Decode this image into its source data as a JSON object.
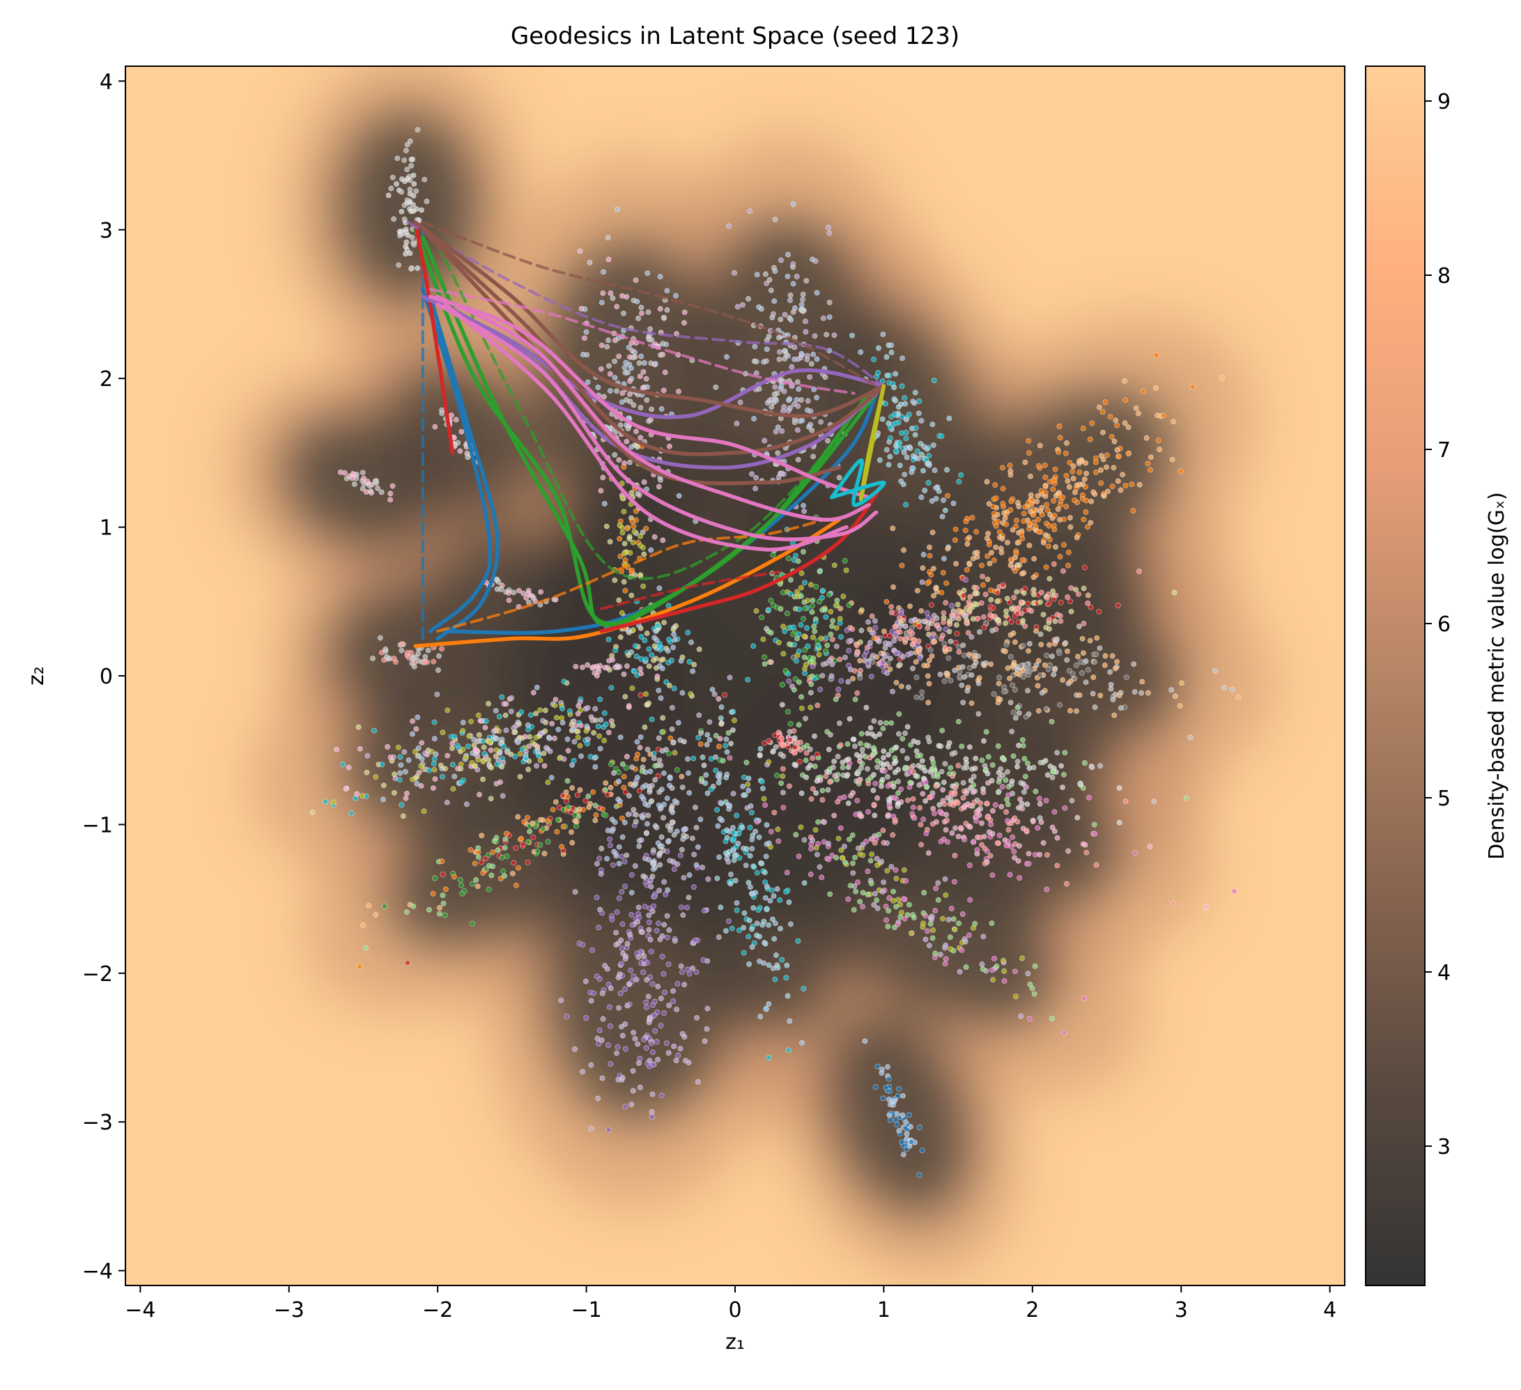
{
  "chart_data": {
    "type": "scatter",
    "title": "Geodesics in Latent Space (seed 123)",
    "xlabel": "z₁",
    "ylabel": "z₂",
    "xlim": [
      -4.1,
      4.1
    ],
    "ylim": [
      -4.1,
      4.1
    ],
    "x_ticks": [
      -4,
      -3,
      -2,
      -1,
      0,
      1,
      2,
      3,
      4
    ],
    "y_ticks": [
      -4,
      -3,
      -2,
      -1,
      0,
      1,
      2,
      3,
      4
    ],
    "x_tick_labels": [
      "−4",
      "−3",
      "−2",
      "−1",
      "0",
      "1",
      "2",
      "3",
      "4"
    ],
    "y_tick_labels": [
      "−4",
      "−3",
      "−2",
      "−1",
      "0",
      "1",
      "2",
      "3",
      "4"
    ],
    "grid": false,
    "colorbar": {
      "label": "Density-based metric value log(Gₓ)",
      "range": [
        2.2,
        9.2
      ],
      "ticks": [
        3,
        4,
        5,
        6,
        7,
        8,
        9
      ],
      "tick_labels": [
        "3",
        "4",
        "5",
        "6",
        "7",
        "8",
        "9"
      ],
      "colors": [
        "#333333",
        "#5a4a40",
        "#8a6650",
        "#b58565",
        "#e69d78",
        "#ffb07e",
        "#fecf96"
      ]
    },
    "background_low_density_color": "#fecf96",
    "clusters": [
      {
        "center": [
          -2.2,
          3.15
        ],
        "spread": [
          0.06,
          0.18
        ],
        "angle": 0,
        "n": 70,
        "colors": [
          "#c7c7c7",
          "#dddddd"
        ]
      },
      {
        "center": [
          -0.7,
          1.9
        ],
        "spread": [
          0.17,
          0.45
        ],
        "angle": 0,
        "n": 220,
        "colors": [
          "#aec7e8",
          "#c7c7c7",
          "#f7b6d2"
        ]
      },
      {
        "center": [
          0.35,
          2.05
        ],
        "spread": [
          0.17,
          0.45
        ],
        "angle": 0,
        "n": 220,
        "colors": [
          "#c5b0d5",
          "#aec7e8",
          "#c7c7c7"
        ]
      },
      {
        "center": [
          1.15,
          1.65
        ],
        "spread": [
          0.09,
          0.35
        ],
        "angle": 20,
        "n": 130,
        "colors": [
          "#17becf",
          "#9edae5",
          "#aec7e8"
        ]
      },
      {
        "center": [
          1.95,
          1.05
        ],
        "spread": [
          0.55,
          0.16
        ],
        "angle": 38,
        "n": 340,
        "colors": [
          "#ff7f0e",
          "#ffbb78"
        ]
      },
      {
        "center": [
          1.8,
          0.45
        ],
        "spread": [
          0.45,
          0.1
        ],
        "angle": 10,
        "n": 180,
        "colors": [
          "#d62728",
          "#ff9896",
          "#dbdb8d"
        ]
      },
      {
        "center": [
          1.85,
          0.05
        ],
        "spread": [
          0.55,
          0.14
        ],
        "angle": -5,
        "n": 260,
        "colors": [
          "#7f7f7f",
          "#c7c7c7",
          "#ffbb78"
        ]
      },
      {
        "center": [
          0.45,
          0.35
        ],
        "spread": [
          0.15,
          0.3
        ],
        "angle": 0,
        "n": 160,
        "colors": [
          "#2ca02c",
          "#bcbd22",
          "#17becf",
          "#98df8a"
        ]
      },
      {
        "center": [
          1.0,
          0.2
        ],
        "spread": [
          0.3,
          0.1
        ],
        "angle": 30,
        "n": 120,
        "colors": [
          "#9467bd",
          "#c5b0d5",
          "#ff9896"
        ]
      },
      {
        "center": [
          -0.55,
          0.2
        ],
        "spread": [
          0.15,
          0.12
        ],
        "angle": -30,
        "n": 90,
        "colors": [
          "#17becf",
          "#dbdb8d",
          "#aec7e8"
        ]
      },
      {
        "center": [
          -0.7,
          0.85
        ],
        "spread": [
          0.06,
          0.3
        ],
        "angle": 0,
        "n": 70,
        "colors": [
          "#ff7f0e",
          "#bcbd22",
          "#dbdb8d"
        ]
      },
      {
        "center": [
          -1.5,
          -0.45
        ],
        "spread": [
          0.55,
          0.14
        ],
        "angle": 12,
        "n": 380,
        "colors": [
          "#dbdb8d",
          "#17becf",
          "#aec7e8",
          "#f7b6d2",
          "#c5b0d5",
          "#bcbd22"
        ]
      },
      {
        "center": [
          -1.3,
          -1.05
        ],
        "spread": [
          0.55,
          0.1
        ],
        "angle": 32,
        "n": 200,
        "colors": [
          "#ff7f0e",
          "#2ca02c",
          "#d62728",
          "#98df8a",
          "#ffbb78"
        ]
      },
      {
        "center": [
          -0.6,
          -1.9
        ],
        "spread": [
          0.2,
          0.5
        ],
        "angle": -5,
        "n": 280,
        "colors": [
          "#9467bd",
          "#c5b0d5"
        ]
      },
      {
        "center": [
          -0.55,
          -0.95
        ],
        "spread": [
          0.15,
          0.25
        ],
        "angle": 0,
        "n": 120,
        "colors": [
          "#aec7e8",
          "#c7c7c7"
        ]
      },
      {
        "center": [
          0.1,
          -1.35
        ],
        "spread": [
          0.12,
          0.5
        ],
        "angle": 15,
        "n": 180,
        "colors": [
          "#9edae5",
          "#17becf",
          "#aec7e8"
        ]
      },
      {
        "center": [
          1.2,
          -0.6
        ],
        "spread": [
          0.65,
          0.15
        ],
        "angle": -5,
        "n": 320,
        "colors": [
          "#c7c7c7",
          "#dddddd",
          "#98df8a"
        ]
      },
      {
        "center": [
          1.45,
          -0.95
        ],
        "spread": [
          0.55,
          0.14
        ],
        "angle": -15,
        "n": 240,
        "colors": [
          "#ff9896",
          "#f7b6d2",
          "#e377c2"
        ]
      },
      {
        "center": [
          1.1,
          -1.5
        ],
        "spread": [
          0.6,
          0.12
        ],
        "angle": -35,
        "n": 200,
        "colors": [
          "#e377c2",
          "#98df8a",
          "#bcbd22",
          "#c5b0d5"
        ]
      },
      {
        "center": [
          1.1,
          -2.95
        ],
        "spread": [
          0.04,
          0.22
        ],
        "angle": 20,
        "n": 60,
        "colors": [
          "#1f77b4",
          "#aec7e8"
        ]
      },
      {
        "center": [
          -2.5,
          1.3
        ],
        "spread": [
          0.12,
          0.03
        ],
        "angle": -20,
        "n": 30,
        "colors": [
          "#f7b6d2",
          "#c7c7c7"
        ]
      },
      {
        "center": [
          -1.85,
          1.6
        ],
        "spread": [
          0.12,
          0.04
        ],
        "angle": -50,
        "n": 30,
        "colors": [
          "#f7b6d2",
          "#c7c7c7"
        ]
      },
      {
        "center": [
          -1.45,
          0.55
        ],
        "spread": [
          0.15,
          0.03
        ],
        "angle": -10,
        "n": 30,
        "colors": [
          "#f7b6d2",
          "#c7c7c7"
        ]
      },
      {
        "center": [
          -2.2,
          0.15
        ],
        "spread": [
          0.1,
          0.05
        ],
        "angle": 0,
        "n": 40,
        "colors": [
          "#ff9896",
          "#c7c7c7"
        ]
      },
      {
        "center": [
          -0.9,
          0.05
        ],
        "spread": [
          0.1,
          0.03
        ],
        "angle": 0,
        "n": 20,
        "colors": [
          "#f7b6d2"
        ]
      },
      {
        "center": [
          0.35,
          -0.45
        ],
        "spread": [
          0.08,
          0.04
        ],
        "angle": -20,
        "n": 30,
        "colors": [
          "#d62728",
          "#ff9896"
        ]
      }
    ],
    "series": [
      {
        "color": "#1f77b4",
        "style": "solid",
        "points": [
          [
            -2.1,
            2.6
          ],
          [
            -1.85,
            1.8
          ],
          [
            -1.65,
            0.9
          ],
          [
            -1.75,
            0.55
          ],
          [
            -2.05,
            0.3
          ]
        ]
      },
      {
        "color": "#1f77b4",
        "style": "solid",
        "points": [
          [
            -2.05,
            2.55
          ],
          [
            -1.8,
            1.7
          ],
          [
            -1.6,
            0.95
          ],
          [
            -1.7,
            0.5
          ],
          [
            -2.0,
            0.25
          ]
        ]
      },
      {
        "color": "#1f77b4",
        "style": "solid",
        "points": [
          [
            -1.95,
            0.3
          ],
          [
            -1.2,
            0.3
          ],
          [
            -0.6,
            0.45
          ],
          [
            0.1,
            0.9
          ],
          [
            0.75,
            1.5
          ],
          [
            0.95,
            1.9
          ]
        ]
      },
      {
        "color": "#1f77b4",
        "style": "dashed",
        "points": [
          [
            -2.1,
            0.25
          ],
          [
            -2.1,
            1.5
          ],
          [
            -2.1,
            3.0
          ]
        ]
      },
      {
        "color": "#2ca02c",
        "style": "solid",
        "points": [
          [
            -2.1,
            2.95
          ],
          [
            -1.6,
            1.8
          ],
          [
            -1.05,
            0.8
          ],
          [
            -0.9,
            0.35
          ],
          [
            -0.4,
            0.55
          ],
          [
            0.3,
            1.1
          ],
          [
            0.95,
            1.9
          ]
        ]
      },
      {
        "color": "#2ca02c",
        "style": "solid",
        "points": [
          [
            -2.15,
            3.0
          ],
          [
            -1.75,
            2.0
          ],
          [
            -1.2,
            1.2
          ],
          [
            -0.95,
            0.4
          ],
          [
            -0.5,
            0.5
          ],
          [
            0.2,
            1.0
          ],
          [
            0.9,
            1.9
          ]
        ]
      },
      {
        "color": "#2ca02c",
        "style": "dashed",
        "points": [
          [
            -2.0,
            2.9
          ],
          [
            -1.4,
            1.7
          ],
          [
            -0.8,
            0.7
          ],
          [
            0.0,
            0.9
          ],
          [
            0.7,
            1.6
          ]
        ]
      },
      {
        "color": "#ff7f0e",
        "style": "solid",
        "points": [
          [
            -2.15,
            0.2
          ],
          [
            -1.5,
            0.25
          ],
          [
            -1.0,
            0.27
          ],
          [
            -0.3,
            0.5
          ],
          [
            0.3,
            0.8
          ],
          [
            0.7,
            1.05
          ]
        ]
      },
      {
        "color": "#ff7f0e",
        "style": "dashed",
        "points": [
          [
            -2.0,
            0.3
          ],
          [
            -1.3,
            0.5
          ],
          [
            -0.7,
            0.75
          ],
          [
            -0.3,
            0.9
          ],
          [
            0.2,
            0.95
          ],
          [
            0.6,
            1.05
          ]
        ]
      },
      {
        "color": "#d62728",
        "style": "solid",
        "points": [
          [
            -2.15,
            3.05
          ],
          [
            -2.05,
            2.5
          ],
          [
            -1.9,
            1.5
          ]
        ]
      },
      {
        "color": "#d62728",
        "style": "solid",
        "points": [
          [
            -0.9,
            0.3
          ],
          [
            -0.3,
            0.45
          ],
          [
            0.2,
            0.6
          ],
          [
            0.7,
            0.9
          ],
          [
            1.0,
            1.3
          ]
        ]
      },
      {
        "color": "#d62728",
        "style": "dashed",
        "points": [
          [
            -0.9,
            0.45
          ],
          [
            -0.3,
            0.6
          ],
          [
            0.3,
            0.7
          ]
        ]
      },
      {
        "color": "#9467bd",
        "style": "solid",
        "points": [
          [
            -2.1,
            2.55
          ],
          [
            -1.5,
            2.25
          ],
          [
            -0.9,
            1.85
          ],
          [
            -0.3,
            1.75
          ],
          [
            0.4,
            2.05
          ],
          [
            1.0,
            1.95
          ]
        ]
      },
      {
        "color": "#9467bd",
        "style": "solid",
        "points": [
          [
            -2.05,
            2.55
          ],
          [
            -1.4,
            2.15
          ],
          [
            -0.8,
            1.55
          ],
          [
            -0.1,
            1.4
          ],
          [
            0.5,
            1.55
          ],
          [
            0.95,
            1.9
          ]
        ]
      },
      {
        "color": "#9467bd",
        "style": "dashed",
        "points": [
          [
            -2.2,
            3.05
          ],
          [
            -1.5,
            2.65
          ],
          [
            -0.8,
            2.35
          ],
          [
            0.0,
            2.25
          ],
          [
            0.6,
            2.2
          ],
          [
            1.0,
            1.95
          ]
        ]
      },
      {
        "color": "#8c564b",
        "style": "solid",
        "points": [
          [
            -2.15,
            3.05
          ],
          [
            -1.5,
            2.55
          ],
          [
            -0.9,
            2.0
          ],
          [
            -0.2,
            1.85
          ],
          [
            0.5,
            1.75
          ],
          [
            1.0,
            1.95
          ]
        ]
      },
      {
        "color": "#8c564b",
        "style": "solid",
        "points": [
          [
            -2.1,
            3.0
          ],
          [
            -1.4,
            2.35
          ],
          [
            -0.7,
            1.6
          ],
          [
            0.0,
            1.5
          ],
          [
            0.6,
            1.65
          ],
          [
            1.0,
            1.95
          ]
        ]
      },
      {
        "color": "#8c564b",
        "style": "solid",
        "points": [
          [
            -2.05,
            2.95
          ],
          [
            -1.3,
            2.15
          ],
          [
            -0.6,
            1.4
          ],
          [
            0.2,
            1.3
          ],
          [
            0.7,
            1.4
          ]
        ]
      },
      {
        "color": "#8c564b",
        "style": "dashed",
        "points": [
          [
            -2.1,
            3.05
          ],
          [
            -1.3,
            2.75
          ],
          [
            -0.5,
            2.55
          ],
          [
            0.3,
            2.3
          ],
          [
            0.95,
            1.95
          ]
        ]
      },
      {
        "color": "#e377c2",
        "style": "solid",
        "points": [
          [
            -2.05,
            2.55
          ],
          [
            -1.4,
            2.3
          ],
          [
            -0.7,
            1.7
          ],
          [
            0.0,
            1.55
          ],
          [
            0.6,
            1.3
          ],
          [
            0.9,
            1.2
          ]
        ]
      },
      {
        "color": "#e377c2",
        "style": "solid",
        "points": [
          [
            -2.0,
            2.55
          ],
          [
            -1.35,
            2.2
          ],
          [
            -0.7,
            1.5
          ],
          [
            0.0,
            1.2
          ],
          [
            0.6,
            1.05
          ],
          [
            0.9,
            1.15
          ]
        ]
      },
      {
        "color": "#e377c2",
        "style": "solid",
        "points": [
          [
            -2.0,
            2.5
          ],
          [
            -1.3,
            2.05
          ],
          [
            -0.7,
            1.3
          ],
          [
            0.1,
            0.95
          ],
          [
            0.7,
            0.95
          ],
          [
            0.95,
            1.1
          ]
        ]
      },
      {
        "color": "#e377c2",
        "style": "solid",
        "points": [
          [
            -1.95,
            2.5
          ],
          [
            -1.25,
            1.9
          ],
          [
            -0.6,
            1.1
          ],
          [
            0.2,
            0.85
          ],
          [
            0.75,
            1.0
          ]
        ]
      },
      {
        "color": "#e377c2",
        "style": "dashed",
        "points": [
          [
            -2.05,
            2.6
          ],
          [
            -1.3,
            2.45
          ],
          [
            -0.5,
            2.2
          ],
          [
            0.2,
            2.0
          ],
          [
            0.8,
            1.9
          ]
        ]
      },
      {
        "color": "#bcbd22",
        "style": "solid",
        "points": [
          [
            1.0,
            1.95
          ],
          [
            0.9,
            1.5
          ],
          [
            0.85,
            1.2
          ],
          [
            1.0,
            1.95
          ]
        ]
      },
      {
        "color": "#17becf",
        "style": "solid",
        "points": [
          [
            0.65,
            1.2
          ],
          [
            0.85,
            1.45
          ],
          [
            0.8,
            1.15
          ],
          [
            1.0,
            1.3
          ],
          [
            0.65,
            1.2
          ]
        ]
      }
    ]
  }
}
